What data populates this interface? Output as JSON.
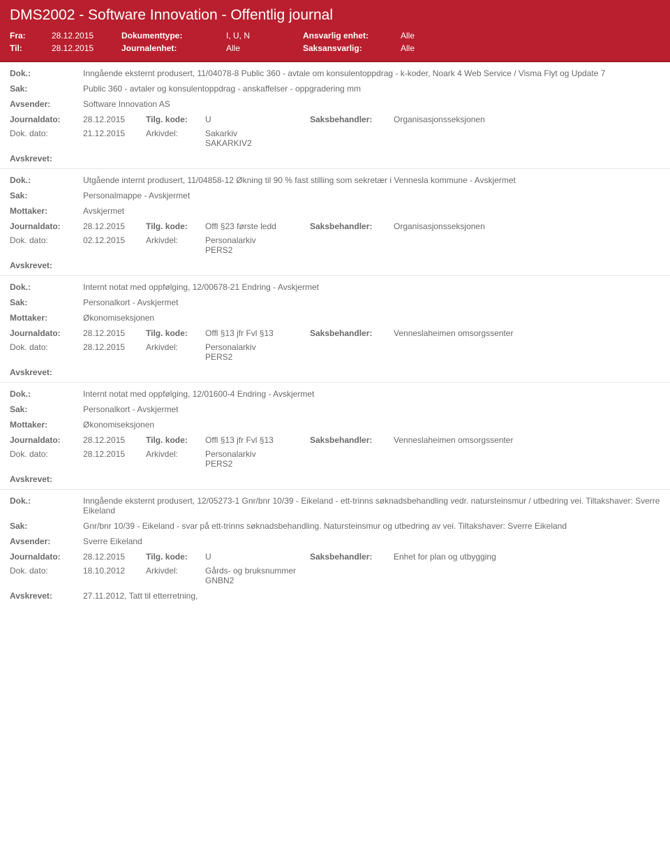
{
  "header": {
    "title": "DMS2002 - Software Innovation - Offentlig journal",
    "fra_label": "Fra:",
    "fra_value": "28.12.2015",
    "til_label": "Til:",
    "til_value": "28.12.2015",
    "doktype_label": "Dokumenttype:",
    "doktype_value": "I, U, N",
    "journalenhet_label": "Journalenhet:",
    "journalenhet_value": "Alle",
    "ansvarlig_label": "Ansvarlig enhet:",
    "ansvarlig_value": "Alle",
    "saksansvarlig_label": "Saksansvarlig:",
    "saksansvarlig_value": "Alle"
  },
  "labels": {
    "dok": "Dok.:",
    "sak": "Sak:",
    "avsender": "Avsender:",
    "mottaker": "Mottaker:",
    "journaldato": "Journaldato:",
    "tilgkode": "Tilg. kode:",
    "saksbehandler": "Saksbehandler:",
    "dokdato": "Dok. dato:",
    "arkivdel": "Arkivdel:",
    "avskrevet": "Avskrevet:"
  },
  "entries": [
    {
      "dok": "Inngående eksternt produsert, 11/04078-8 Public 360 - avtale om konsulentoppdrag - k-koder, Noark 4 Web Service / Visma Flyt og Update 7",
      "sak": "Public 360 - avtaler og konsulentoppdrag - anskaffelser - oppgradering mm",
      "party_label": "Avsender:",
      "party_value": "Software Innovation AS",
      "journaldato": "28.12.2015",
      "tilgkode": "U",
      "saksbehandler": "Organisasjonsseksjonen",
      "dokdato": "21.12.2015",
      "arkivdel1": "Sakarkiv",
      "arkivdel2": "SAKARKIV2",
      "avskrevet": ""
    },
    {
      "dok": "Utgående internt produsert, 11/04858-12 Økning til 90 % fast stilling som sekretær i Vennesla kommune - Avskjermet",
      "sak": "Personalmappe - Avskjermet",
      "party_label": "Mottaker:",
      "party_value": "Avskjermet",
      "journaldato": "28.12.2015",
      "tilgkode": "Offl §23 første ledd",
      "saksbehandler": "Organisasjonsseksjonen",
      "dokdato": "02.12.2015",
      "arkivdel1": "Personalarkiv",
      "arkivdel2": "PERS2",
      "avskrevet": ""
    },
    {
      "dok": "Internt notat med oppfølging, 12/00678-21 Endring - Avskjermet",
      "sak": "Personalkort - Avskjermet",
      "party_label": "Mottaker:",
      "party_value": "Økonomiseksjonen",
      "journaldato": "28.12.2015",
      "tilgkode": "Offl §13 jfr Fvl §13",
      "saksbehandler": "Venneslaheimen omsorgssenter",
      "dokdato": "28.12.2015",
      "arkivdel1": "Personalarkiv",
      "arkivdel2": "PERS2",
      "avskrevet": ""
    },
    {
      "dok": "Internt notat med oppfølging, 12/01600-4 Endring - Avskjermet",
      "sak": "Personalkort - Avskjermet",
      "party_label": "Mottaker:",
      "party_value": "Økonomiseksjonen",
      "journaldato": "28.12.2015",
      "tilgkode": "Offl §13 jfr Fvl §13",
      "saksbehandler": "Venneslaheimen omsorgssenter",
      "dokdato": "28.12.2015",
      "arkivdel1": "Personalarkiv",
      "arkivdel2": "PERS2",
      "avskrevet": ""
    },
    {
      "dok": "Inngående eksternt produsert, 12/05273-1 Gnr/bnr 10/39 - Eikeland - ett-trinns søknadsbehandling vedr. natursteinsmur / utbedring vei.  Tiltakshaver:  Sverre Eikeland",
      "sak": "Gnr/bnr 10/39 - Eikeland - svar på ett-trinns søknadsbehandling. Natursteinsmur og utbedring av vei.  Tiltakshaver:  Sverre Eikeland",
      "party_label": "Avsender:",
      "party_value": "Sverre Eikeland",
      "journaldato": "28.12.2015",
      "tilgkode": "U",
      "saksbehandler": "Enhet for plan og utbygging",
      "dokdato": "18.10.2012",
      "arkivdel1": "Gårds- og bruksnummer",
      "arkivdel2": "GNBN2",
      "avskrevet": "27.11.2012, Tatt til etterretning,"
    }
  ],
  "colors": {
    "header_bg": "#b91f2e",
    "header_fg": "#ffffff",
    "text": "#6a6a6a",
    "divider": "#e8e8e8"
  }
}
